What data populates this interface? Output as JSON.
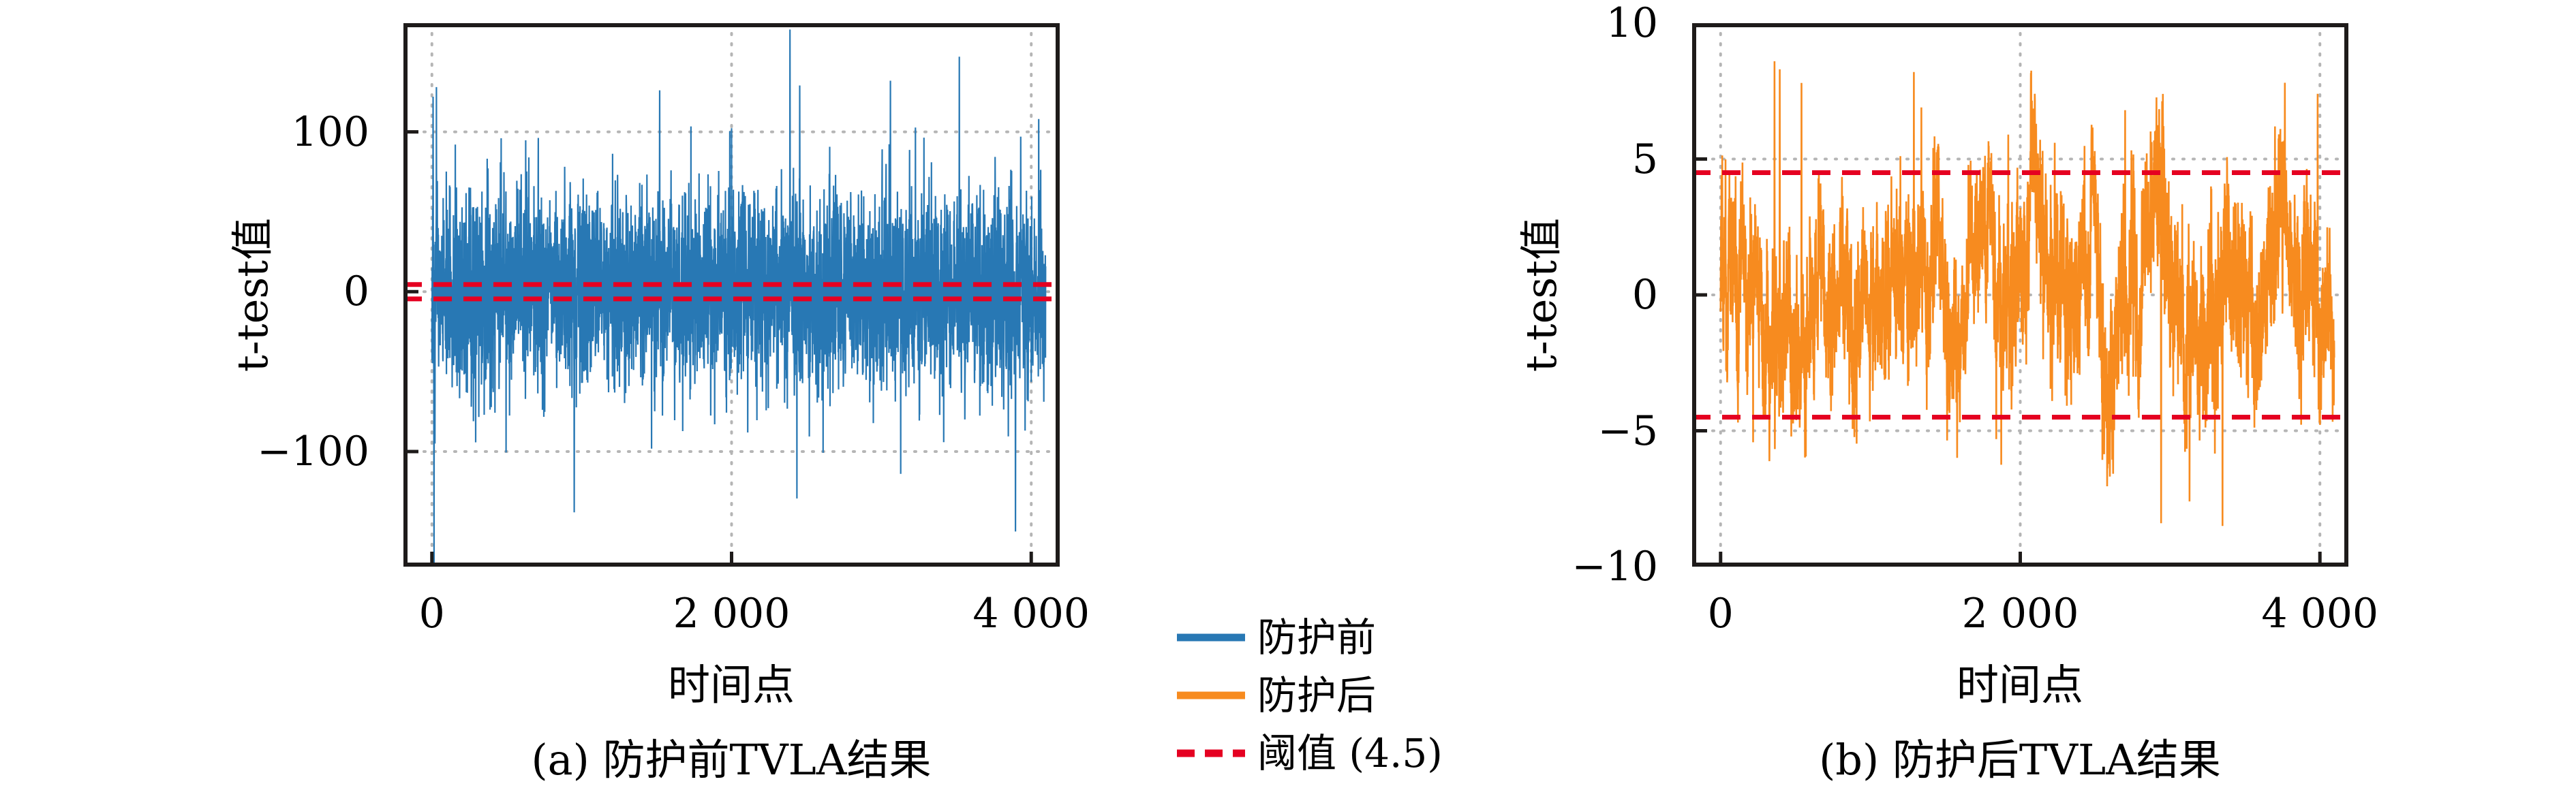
{
  "figure": {
    "background": "#ffffff",
    "axis_color": "#1e1b1a",
    "grid_color": "#b5b5b5",
    "text_color": "#000000"
  },
  "legend": {
    "items": [
      {
        "label": "防护前",
        "color": "#2878b4",
        "line_style": "solid"
      },
      {
        "label": "防护后",
        "color": "#f78b1f",
        "line_style": "solid"
      },
      {
        "label": "阈值 (4.5)",
        "color": "#e50021",
        "line_style": "dashed"
      }
    ]
  },
  "chart_data": [
    {
      "type": "line",
      "title": "(a) 防护前TVLA结果",
      "xlabel": "时间点",
      "ylabel": "t-test值",
      "xlim": [
        -190,
        4190
      ],
      "ylim": [
        -172,
        168
      ],
      "grid": "dotted",
      "legend_position": "none",
      "xticks": [
        {
          "value": 0,
          "label": "0"
        },
        {
          "value": 2000,
          "label": "2 000"
        },
        {
          "value": 4000,
          "label": "4 000"
        }
      ],
      "yticks": [
        {
          "value": 100,
          "label": "100"
        },
        {
          "value": 0,
          "label": "0"
        },
        {
          "value": -100,
          "label": "−100"
        }
      ],
      "threshold": {
        "label": "阈值 (4.5)",
        "values": [
          4.5,
          -4.5
        ],
        "color": "#e50021",
        "style": "dashed"
      },
      "series": [
        {
          "name": "防护前",
          "color": "#2878b4",
          "style": "solid",
          "n_points": 4097,
          "mean": 0,
          "noise_std": 30,
          "tail_prob": 0.012,
          "tail_scale": 2.3,
          "clip": [
            -172,
            166
          ],
          "seed": 20,
          "anchor_points": [
            [
              8,
              122
            ],
            [
              14,
              -170
            ],
            [
              20,
              -95
            ],
            [
              30,
              128
            ],
            [
              950,
              -138
            ],
            [
              1520,
              126
            ],
            [
              2390,
              164
            ],
            [
              2455,
              129
            ],
            [
              3060,
              132
            ],
            [
              3520,
              147
            ],
            [
              3895,
              -150
            ],
            [
              4050,
              108
            ]
          ]
        }
      ]
    },
    {
      "type": "line",
      "title": "(b) 防护后TVLA结果",
      "xlabel": "时间点",
      "ylabel": "t-test值",
      "xlim": [
        -190,
        4190
      ],
      "ylim": [
        -10,
        10
      ],
      "grid": "dotted",
      "legend_position": "none",
      "xticks": [
        {
          "value": 0,
          "label": "0"
        },
        {
          "value": 2000,
          "label": "2 000"
        },
        {
          "value": 4000,
          "label": "4 000"
        }
      ],
      "yticks": [
        {
          "value": 10,
          "label": "10"
        },
        {
          "value": 5,
          "label": "5"
        },
        {
          "value": 0,
          "label": "0"
        },
        {
          "value": -5,
          "label": "−5"
        },
        {
          "value": -10,
          "label": "−10"
        }
      ],
      "threshold": {
        "label": "阈值 (4.5)",
        "values": [
          4.5,
          -4.5
        ],
        "color": "#e50021",
        "style": "dashed"
      },
      "series": [
        {
          "name": "防护后",
          "color": "#f78b1f",
          "style": "solid",
          "n_points": 4097,
          "mean": 0,
          "lowfreq_decay": 0.976,
          "lowfreq_scale": 0.42,
          "noise_std": 1.35,
          "clip": [
            -8.8,
            8.8
          ],
          "seed": 77,
          "anchor_points": [
            [
              360,
              8.6
            ],
            [
              395,
              8.3
            ],
            [
              540,
              7.8
            ],
            [
              1290,
              8.2
            ],
            [
              1340,
              6.9
            ],
            [
              1920,
              5.9
            ],
            [
              2230,
              5.6
            ],
            [
              2700,
              6.8
            ],
            [
              2940,
              -8.4
            ],
            [
              3130,
              -7.6
            ],
            [
              3350,
              -8.5
            ],
            [
              3700,
              6.2
            ],
            [
              3985,
              7.4
            ]
          ]
        }
      ]
    }
  ]
}
